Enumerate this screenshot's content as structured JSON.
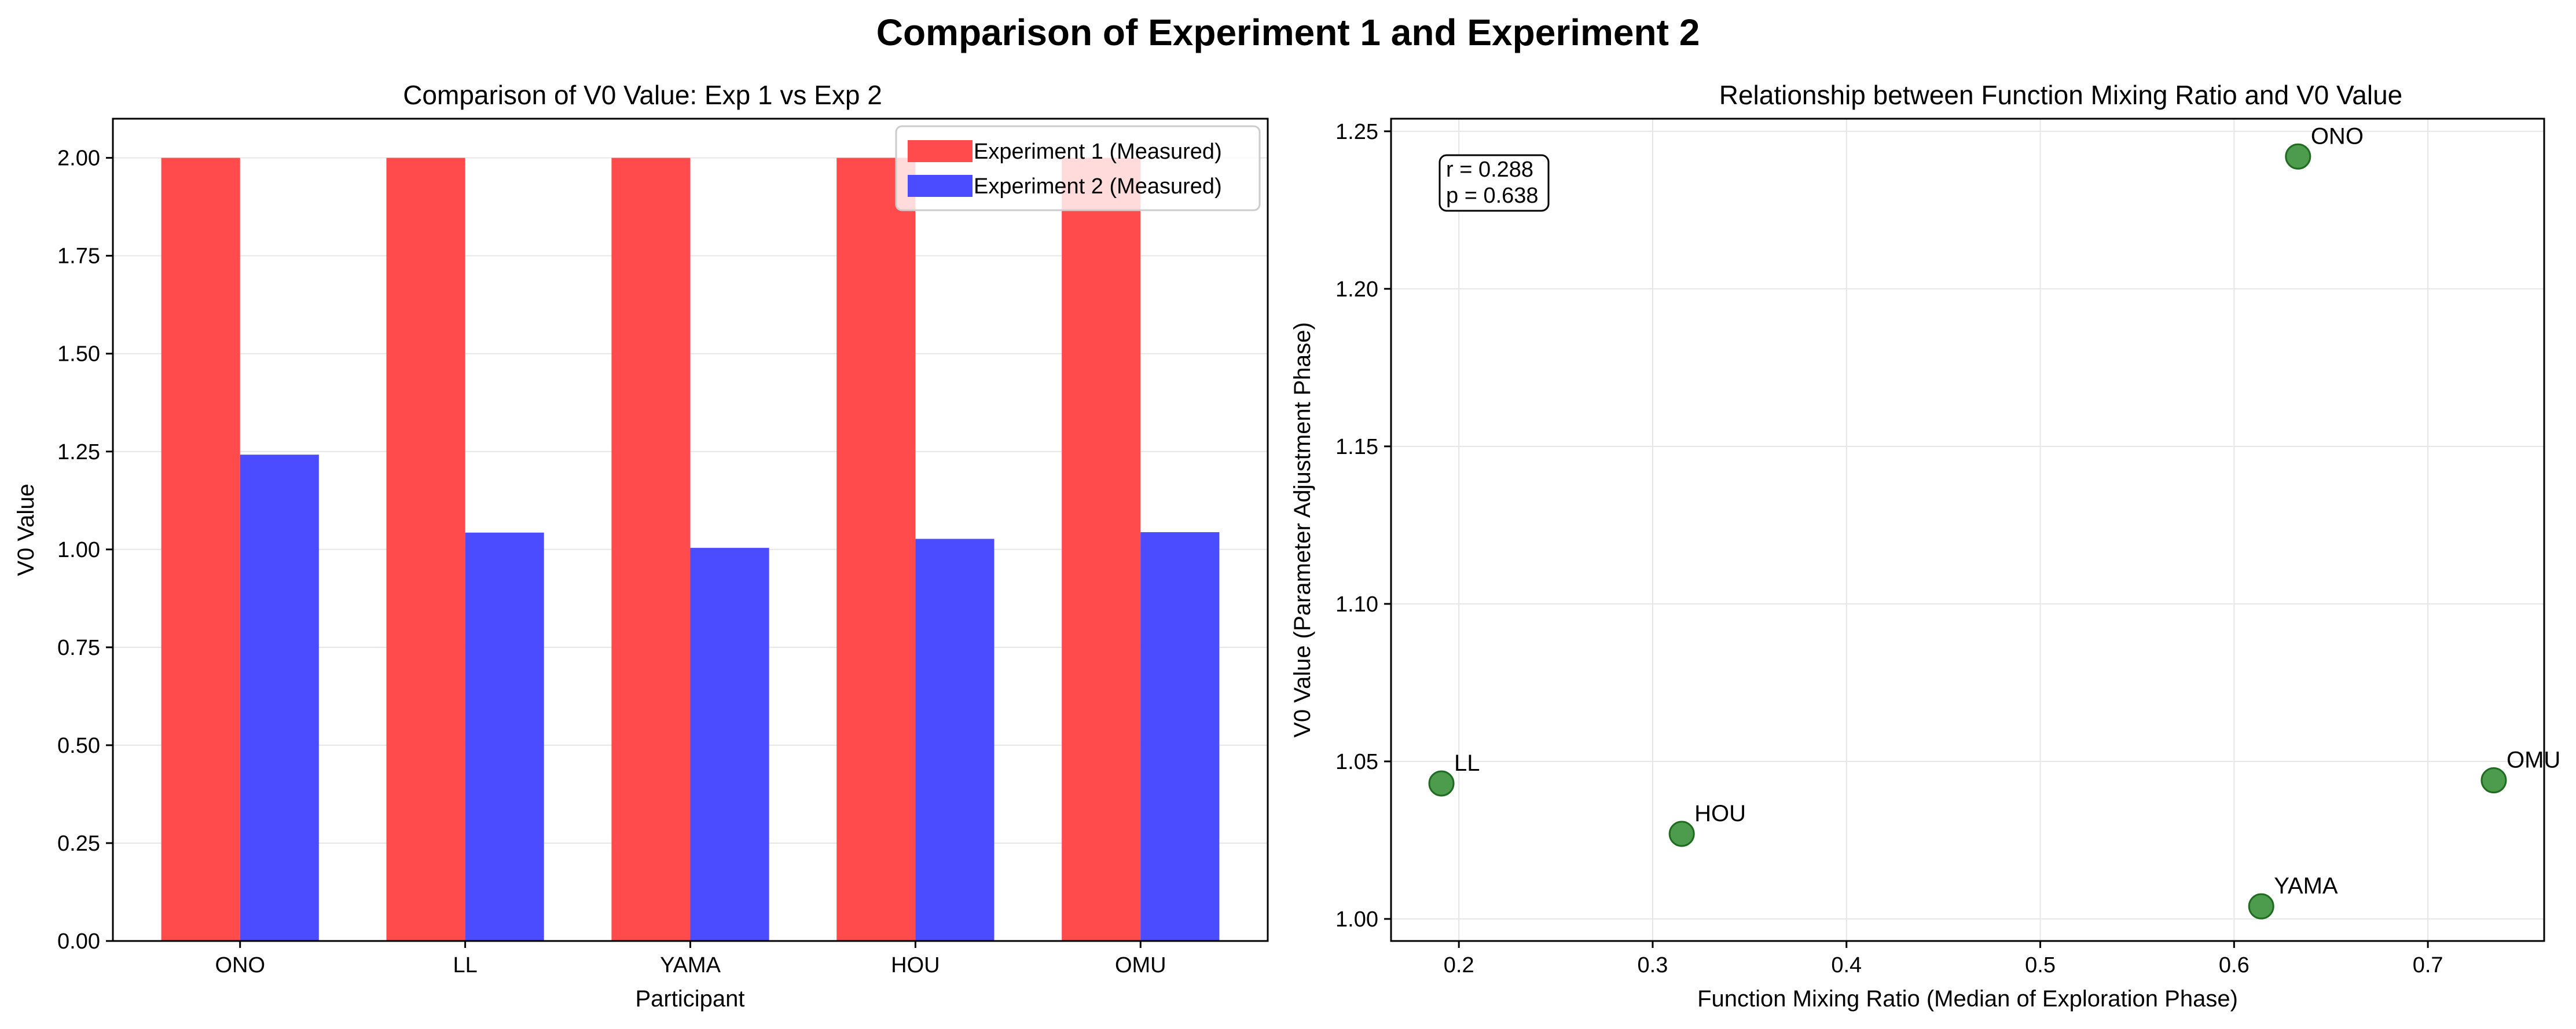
{
  "figure": {
    "title": "Comparison of Experiment 1 and Experiment 2"
  },
  "chart_data": [
    {
      "type": "bar",
      "title": "Comparison of V0 Value: Exp 1 vs Exp 2",
      "xlabel": "Participant",
      "ylabel": "V0 Value",
      "categories": [
        "ONO",
        "LL",
        "YAMA",
        "HOU",
        "OMU"
      ],
      "series": [
        {
          "name": "Experiment 1 (Measured)",
          "color": "#ff4b4b",
          "values": [
            2.0,
            2.0,
            2.0,
            2.0,
            2.0
          ]
        },
        {
          "name": "Experiment 2 (Measured)",
          "color": "#4b4bff",
          "values": [
            1.242,
            1.043,
            1.004,
            1.027,
            1.044
          ]
        }
      ],
      "ylim": [
        0,
        2.1
      ],
      "yticks": [
        "0.00",
        "0.25",
        "0.50",
        "0.75",
        "1.00",
        "1.25",
        "1.50",
        "1.75",
        "2.00"
      ],
      "grid": true,
      "legend_position": "top-right"
    },
    {
      "type": "scatter",
      "title": "Relationship between Function Mixing Ratio and V0 Value",
      "xlabel": "Function Mixing Ratio (Median of Exploration Phase)",
      "ylabel": "V0 Value (Parameter Adjustment Phase)",
      "color": "#2e8b2e",
      "points": [
        {
          "label": "ONO",
          "x": 0.633,
          "y": 1.242
        },
        {
          "label": "LL",
          "x": 0.191,
          "y": 1.043
        },
        {
          "label": "YAMA",
          "x": 0.614,
          "y": 1.004
        },
        {
          "label": "HOU",
          "x": 0.315,
          "y": 1.027
        },
        {
          "label": "OMU",
          "x": 0.734,
          "y": 1.044
        }
      ],
      "xlim": [
        0.165,
        0.76
      ],
      "ylim": [
        0.993,
        1.254
      ],
      "xticks": [
        "0.2",
        "0.3",
        "0.4",
        "0.5",
        "0.6",
        "0.7"
      ],
      "yticks": [
        "1.00",
        "1.05",
        "1.10",
        "1.15",
        "1.20",
        "1.25"
      ],
      "grid": true,
      "annotation": {
        "r": "r = 0.288",
        "p": "p = 0.638"
      }
    }
  ]
}
